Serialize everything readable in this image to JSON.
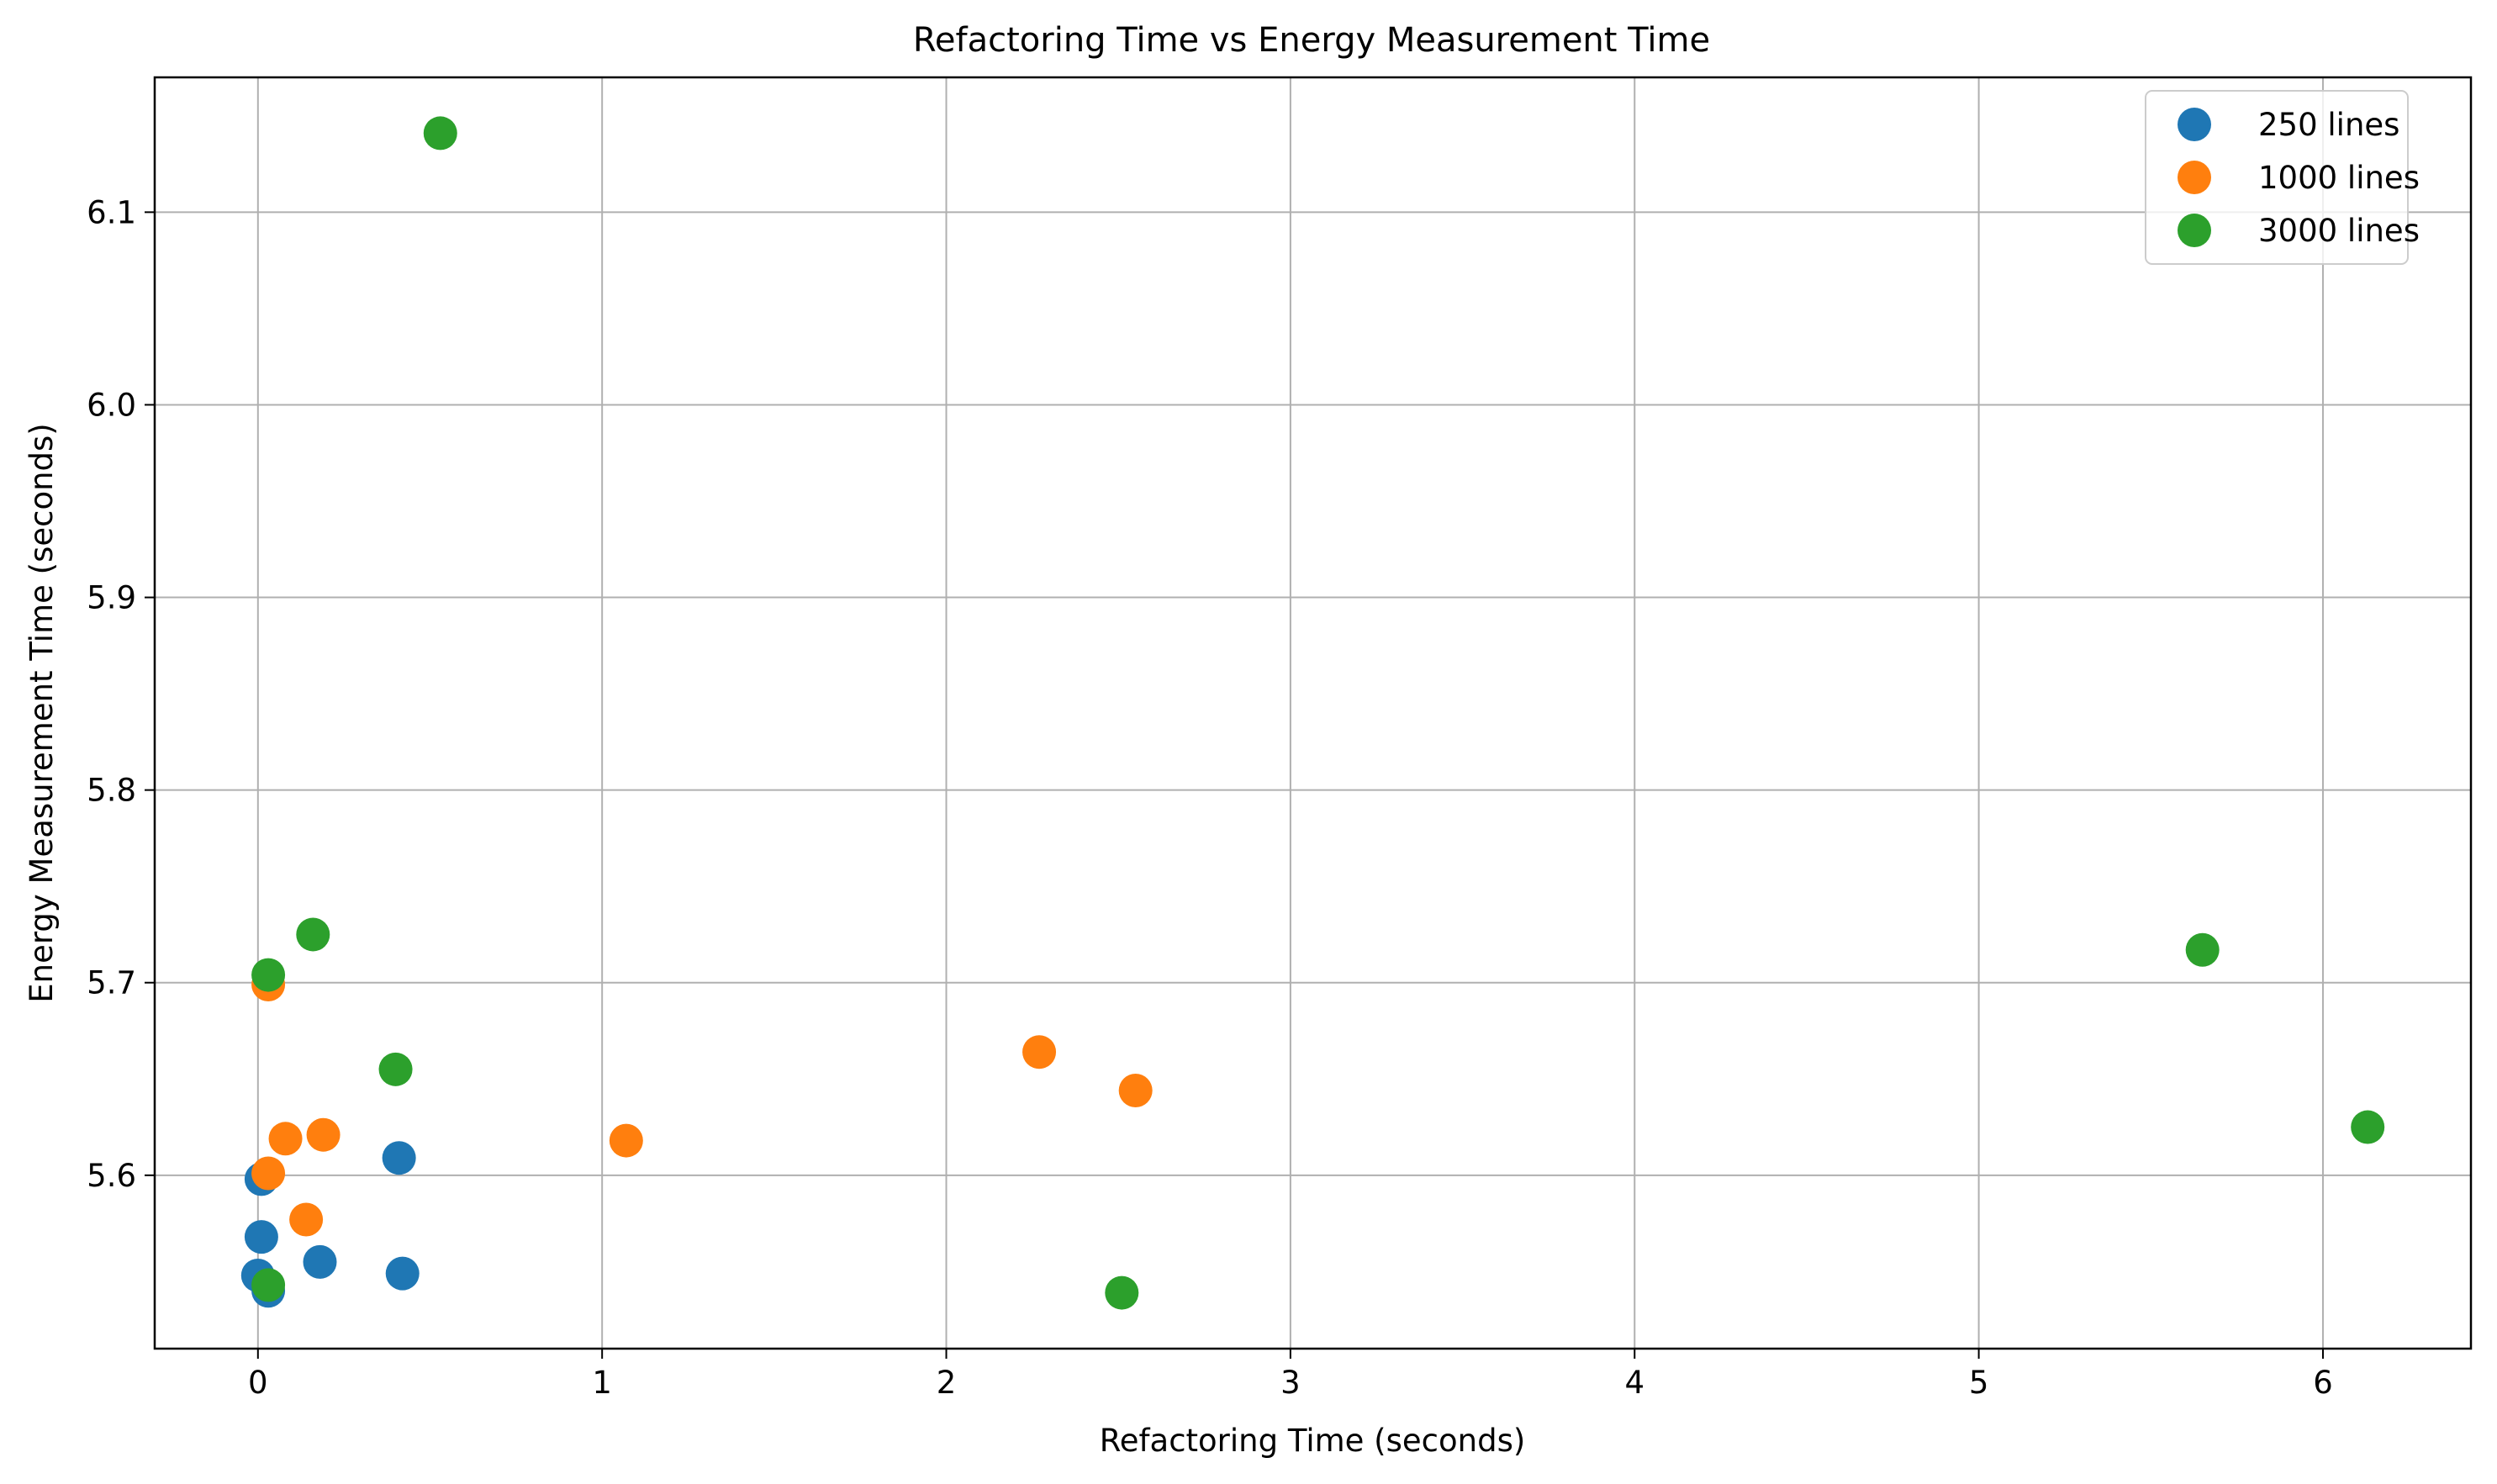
{
  "chart_data": {
    "type": "scatter",
    "title": "Refactoring Time vs Energy Measurement Time",
    "xlabel": "Refactoring Time (seconds)",
    "ylabel": "Energy Measurement Time (seconds)",
    "xlim": [
      -0.3,
      6.43
    ],
    "ylim": [
      5.51,
      6.17
    ],
    "xticks": [
      0,
      1,
      2,
      3,
      4,
      5,
      6
    ],
    "yticks": [
      5.6,
      5.7,
      5.8,
      5.9,
      6.0,
      6.1
    ],
    "xtick_labels": [
      "0",
      "1",
      "2",
      "3",
      "4",
      "5",
      "6"
    ],
    "ytick_labels": [
      "5.6",
      "5.7",
      "5.8",
      "5.9",
      "6.0",
      "6.1"
    ],
    "grid": true,
    "legend_position": "top-right",
    "series": [
      {
        "name": "250 lines",
        "color": "#1f77b4",
        "points": [
          {
            "x": 0.01,
            "y": 5.598
          },
          {
            "x": 0.01,
            "y": 5.568
          },
          {
            "x": 0.0,
            "y": 5.548
          },
          {
            "x": 0.03,
            "y": 5.54
          },
          {
            "x": 0.18,
            "y": 5.555
          },
          {
            "x": 0.41,
            "y": 5.609
          },
          {
            "x": 0.42,
            "y": 5.549
          }
        ]
      },
      {
        "name": "1000 lines",
        "color": "#ff7f0e",
        "points": [
          {
            "x": 0.03,
            "y": 5.699
          },
          {
            "x": 0.03,
            "y": 5.601
          },
          {
            "x": 0.08,
            "y": 5.619
          },
          {
            "x": 0.19,
            "y": 5.621
          },
          {
            "x": 0.14,
            "y": 5.577
          },
          {
            "x": 1.07,
            "y": 5.618
          },
          {
            "x": 2.27,
            "y": 5.664
          },
          {
            "x": 2.55,
            "y": 5.644
          }
        ]
      },
      {
        "name": "3000 lines",
        "color": "#2ca02c",
        "points": [
          {
            "x": 0.53,
            "y": 6.141
          },
          {
            "x": 0.16,
            "y": 5.725
          },
          {
            "x": 0.03,
            "y": 5.704
          },
          {
            "x": 0.4,
            "y": 5.655
          },
          {
            "x": 0.03,
            "y": 5.543
          },
          {
            "x": 2.51,
            "y": 5.539
          },
          {
            "x": 5.65,
            "y": 5.717
          },
          {
            "x": 6.13,
            "y": 5.625
          }
        ]
      }
    ]
  }
}
